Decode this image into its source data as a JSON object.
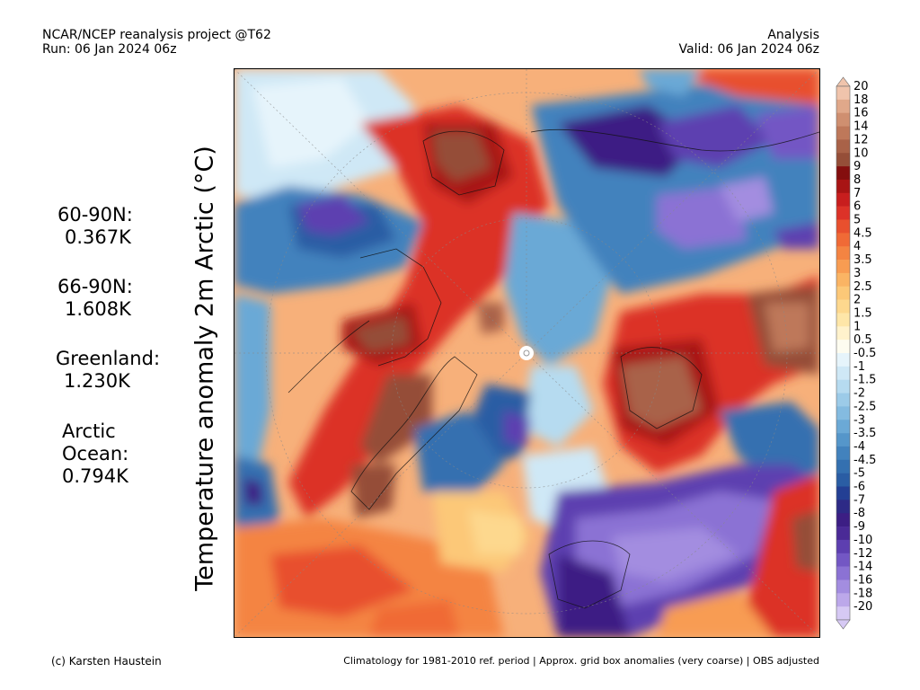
{
  "header": {
    "line1_left": "NCAR/NCEP reanalysis project @T62",
    "line2_left": "Run: 06 Jan 2024 06z",
    "line1_right": "Analysis",
    "line2_right": "Valid: 06 Jan 2024 06z"
  },
  "title_vertical": "Temperature anomaly 2m Arctic (°C)",
  "stats": {
    "r6090": {
      "label": "60-90N:",
      "value": "0.367K"
    },
    "r6690": {
      "label": "66-90N:",
      "value": "1.608K"
    },
    "greenland": {
      "label": "Greenland:",
      "value": "1.230K"
    },
    "arctic_ocean": {
      "label1": "Arctic",
      "label2": "Ocean:",
      "value": "0.794K"
    }
  },
  "colorbar": {
    "labels": [
      "20",
      "18",
      "16",
      "14",
      "12",
      "10",
      "9",
      "8",
      "7",
      "6",
      "5",
      "4.5",
      "4",
      "3.5",
      "3",
      "2.5",
      "2",
      "1.5",
      "1",
      "0.5",
      "-0.5",
      "-1",
      "-1.5",
      "-2",
      "-2.5",
      "-3",
      "-3.5",
      "-4",
      "-4.5",
      "-5",
      "-6",
      "-7",
      "-8",
      "-9",
      "-10",
      "-12",
      "-14",
      "-16",
      "-18",
      "-20"
    ],
    "colors": [
      "#f0c4ac",
      "#e0a88a",
      "#cf8f70",
      "#be785a",
      "#a96248",
      "#954e38",
      "#840e0e",
      "#a81414",
      "#c81e1e",
      "#dc3228",
      "#e8502e",
      "#f06a36",
      "#f48442",
      "#f89c52",
      "#fab464",
      "#fcc878",
      "#fdd88e",
      "#fee6a8",
      "#fff2cc",
      "#fdfcf0",
      "#e6f4fb",
      "#cfe8f6",
      "#b6dbf0",
      "#9ccbe8",
      "#84bbe0",
      "#6ba9d6",
      "#5596ca",
      "#4282bd",
      "#3470b0",
      "#2a5da4",
      "#233f94",
      "#2d2a86",
      "#3c1e84",
      "#4a2a96",
      "#5d3fb0",
      "#7357c4",
      "#8b72d4",
      "#a38de0",
      "#bca8ea",
      "#d6c9f4"
    ]
  },
  "map": {
    "legend_colors": {
      "warm": "#e8502e",
      "hot": "#a96248",
      "cold": "#4282bd",
      "very_cold": "#5d3fb0"
    }
  },
  "footer": {
    "left": "(c) Karsten Haustein",
    "right": "Climatology for 1981-2010 ref. period | Approx. grid box anomalies (very coarse) | OBS adjusted"
  }
}
